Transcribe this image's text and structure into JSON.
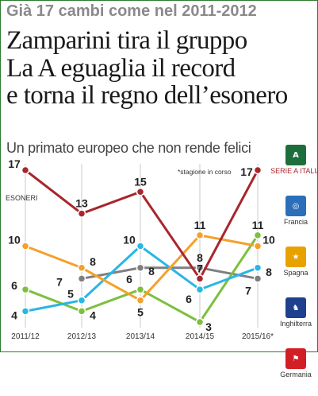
{
  "header": {
    "kicker": "Già 17 cambi come nel 2011-2012",
    "headline": [
      "Zamparini tira il gruppo",
      "La A eguaglia il record",
      "e torna il regno dell’esonero"
    ],
    "subtitle": "Un primato europeo che non rende felici"
  },
  "legend_icons": [
    {
      "icon": "serie-a-icon"
    },
    {
      "icon": "ligue1-icon"
    },
    {
      "icon": "liga-icon"
    },
    {
      "icon": "premier-icon"
    },
    {
      "icon": "bundesliga-icon"
    }
  ],
  "colors": {
    "Serie A": "#a8262d",
    "Francia": "#7f7f7f",
    "Spagna": "#f5a02a",
    "Inghilterra": "#29b6e6",
    "Germania": "#7dbf3f"
  },
  "chart_data": {
    "type": "line",
    "title": "Un primato europeo che non rende felici",
    "categories": [
      "2011/12",
      "2012/13",
      "2013/14",
      "2014/15",
      "2015/16*"
    ],
    "ylabel": "ESONERI",
    "annotation": "*stagione in corso",
    "grid": "vertical",
    "legend_position": "right",
    "series": [
      {
        "name": "SERIE A ITALIA",
        "color": "#a8262d",
        "values": [
          17,
          13,
          15,
          7,
          17
        ]
      },
      {
        "name": "Francia",
        "color": "#7f7f7f",
        "values": [
          null,
          7,
          8,
          8,
          7
        ]
      },
      {
        "name": "Spagna",
        "color": "#f5a02a",
        "values": [
          10,
          8,
          5,
          11,
          10
        ]
      },
      {
        "name": "Inghilterra",
        "color": "#29b6e6",
        "values": [
          4,
          5,
          10,
          6,
          8
        ]
      },
      {
        "name": "Germania",
        "color": "#7dbf3f",
        "values": [
          6,
          4,
          6,
          3,
          11
        ]
      }
    ]
  }
}
